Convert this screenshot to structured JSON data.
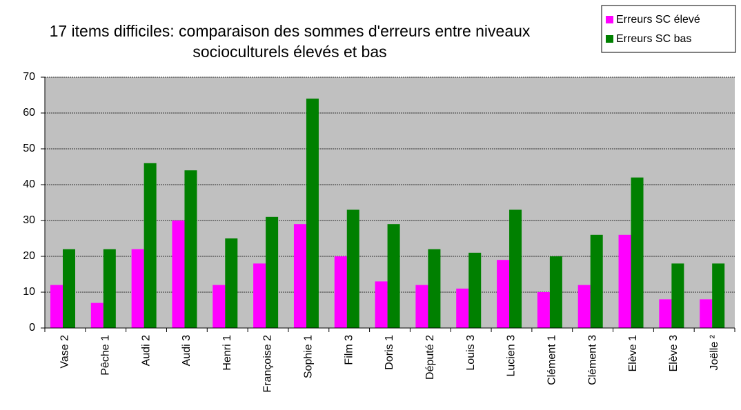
{
  "chart_data": {
    "type": "bar",
    "title": "17 items difficiles: comparaison des sommes d'erreurs entre niveaux socioculturels élevés et bas",
    "categories": [
      "Vase 2",
      "Pêche 1",
      "Audi 2",
      "Audi 3",
      "Henri 1",
      "Françoise 2",
      "Sophie 1",
      "Film 3",
      "Doris 1",
      "Député 2",
      "Louis 3",
      "Lucien 3",
      "Clément 1",
      "Clément 3",
      "Elève 1",
      "Elève 3",
      "Joëlle ²"
    ],
    "series": [
      {
        "name": "Erreurs SC élevé",
        "color": "#ff00ff",
        "values": [
          12,
          7,
          22,
          30,
          12,
          18,
          29,
          20,
          13,
          12,
          11,
          19,
          10,
          12,
          26,
          8,
          8
        ]
      },
      {
        "name": "Erreurs SC bas",
        "color": "#008000",
        "values": [
          22,
          22,
          46,
          44,
          25,
          31,
          64,
          33,
          29,
          22,
          21,
          33,
          20,
          26,
          42,
          18,
          18
        ]
      }
    ],
    "ylim": [
      0,
      70
    ],
    "yticks": [
      0,
      10,
      20,
      30,
      40,
      50,
      60,
      70
    ],
    "grid": true,
    "legend": "top-right"
  }
}
